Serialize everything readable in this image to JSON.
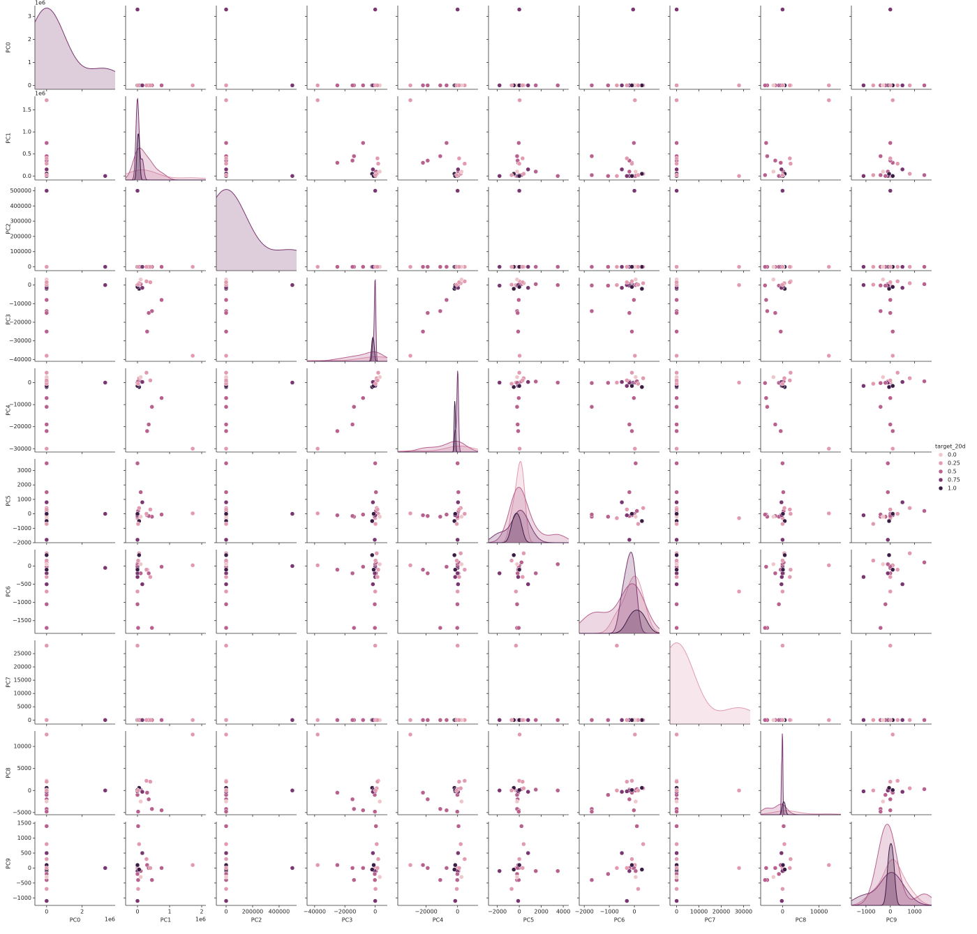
{
  "chart_data": {
    "type": "pairplot",
    "hue_title": "target_20d",
    "hue_levels": [
      {
        "value": 0,
        "label": "0.0"
      },
      0.25,
      0.5,
      0.75,
      {
        "value": 1,
        "label": "1.0"
      }
    ],
    "hue_colors": [
      "#efc6c9",
      "#e19aaf",
      "#b8608e",
      "#7a3670",
      "#3a1c45"
    ],
    "variables": [
      {
        "name": "PC0",
        "offset": "1e6",
        "xlim": [
          -660000,
          3860000
        ],
        "ylim": [
          -170000,
          3470000
        ],
        "xticks": [
          0,
          {
            "value": 2000000,
            "label": "2"
          }
        ],
        "yticks": [
          0,
          {
            "value": 1000000,
            "label": "1"
          },
          {
            "value": 2000000,
            "label": "2"
          },
          {
            "value": 3000000,
            "label": "3"
          }
        ]
      },
      {
        "name": "PC1",
        "offset": "1e6",
        "xlim": [
          -370000,
          2130000
        ],
        "ylim": [
          -90000,
          1810000
        ],
        "xticks": [
          0,
          {
            "value": 1000000,
            "label": "1"
          },
          {
            "value": 2000000,
            "label": "2"
          }
        ],
        "yticks": [
          {
            "value": 0,
            "label": "0.0"
          },
          {
            "value": 500000,
            "label": "0.5"
          },
          {
            "value": 1000000,
            "label": "1.0"
          },
          {
            "value": 1500000,
            "label": "1.5"
          }
        ]
      },
      {
        "name": "PC2",
        "xlim": [
          -74000,
          532000
        ],
        "ylim": [
          -25000,
          525000
        ],
        "xticks": [
          0,
          200000,
          400000
        ],
        "yticks": [
          0,
          100000,
          200000,
          300000,
          400000,
          500000
        ]
      },
      {
        "name": "PC3",
        "xlim": [
          -45000,
          8000
        ],
        "ylim": [
          -41000,
          4000
        ],
        "xticks": [
          {
            "value": -40000,
            "label": "−40000"
          },
          {
            "value": -20000,
            "label": "−20000"
          },
          0
        ],
        "yticks": [
          {
            "value": -40000,
            "label": "−40000"
          },
          {
            "value": -30000,
            "label": "−30000"
          },
          {
            "value": -20000,
            "label": "−20000"
          },
          {
            "value": -10000,
            "label": "−10000"
          },
          0
        ]
      },
      {
        "name": "PC4",
        "xlim": [
          -38000,
          13000
        ],
        "ylim": [
          -31500,
          6500
        ],
        "xticks": [
          {
            "value": -20000,
            "label": "−20000"
          },
          0
        ],
        "yticks": [
          {
            "value": -30000,
            "label": "−30000"
          },
          {
            "value": -20000,
            "label": "−20000"
          },
          {
            "value": -10000,
            "label": "−10000"
          },
          0
        ]
      },
      {
        "name": "PC5",
        "xlim": [
          -2800,
          4500
        ],
        "ylim": [
          -2000,
          3800
        ],
        "xticks": [
          {
            "value": -2000,
            "label": "−2000"
          },
          0,
          2000,
          4000
        ],
        "yticks": [
          {
            "value": -2000,
            "label": "−2000"
          },
          {
            "value": -1000,
            "label": "−1000"
          },
          0,
          1000,
          2000,
          3000
        ]
      },
      {
        "name": "PC6",
        "xlim": [
          -2200,
          1000
        ],
        "ylim": [
          -1850,
          450
        ],
        "xticks": [
          {
            "value": -2000,
            "label": "−2000"
          },
          {
            "value": -1000,
            "label": "−1000"
          },
          0
        ],
        "yticks": [
          {
            "value": -1500,
            "label": "−1500"
          },
          {
            "value": -1000,
            "label": "−1000"
          },
          {
            "value": -500,
            "label": "−500"
          },
          0
        ]
      },
      {
        "name": "PC7",
        "xlim": [
          -3000,
          33000
        ],
        "ylim": [
          -1500,
          30000
        ],
        "xticks": [
          0,
          10000,
          20000,
          30000
        ],
        "yticks": [
          0,
          5000,
          10000,
          15000,
          20000,
          25000
        ]
      },
      {
        "name": "PC8",
        "xlim": [
          -6000,
          16000
        ],
        "ylim": [
          -5500,
          13500
        ],
        "xticks": [
          0,
          10000
        ],
        "yticks": [
          {
            "value": -5000,
            "label": "−5000"
          },
          0,
          5000,
          10000
        ]
      },
      {
        "name": "PC9",
        "xlim": [
          -1600,
          1700
        ],
        "ylim": [
          -1250,
          1550
        ],
        "xticks": [
          {
            "value": -1000,
            "label": "−1000"
          },
          0,
          1000
        ],
        "yticks": [
          {
            "value": -1000,
            "label": "−1000"
          },
          {
            "value": -500,
            "label": "−500"
          },
          0,
          500,
          1000,
          1500
        ]
      }
    ],
    "points": [
      {
        "hue": 0.75,
        "values": [
          3300000,
          0,
          0,
          0,
          0,
          0,
          -50,
          0,
          0,
          0
        ]
      },
      {
        "hue": 0.25,
        "values": [
          0,
          1720000,
          0,
          -38000,
          -30000,
          30,
          20,
          0,
          12700,
          100
        ]
      },
      {
        "hue": 0.75,
        "values": [
          0,
          0,
          500000,
          0,
          0,
          0,
          0,
          0,
          0,
          0
        ]
      },
      {
        "hue": 0.25,
        "values": [
          0,
          0,
          0,
          0,
          0,
          -300,
          -700,
          28000,
          0,
          0
        ]
      },
      {
        "hue": 0.5,
        "values": [
          0,
          750000,
          0,
          -8000,
          -7000,
          -50,
          -20,
          0,
          -4500,
          0
        ]
      },
      {
        "hue": 0.5,
        "values": [
          0,
          300000,
          0,
          -25000,
          -22000,
          -100,
          -100,
          0,
          -500,
          100
        ]
      },
      {
        "hue": 0.5,
        "values": [
          0,
          450000,
          0,
          -14000,
          -11000,
          -200,
          -1700,
          0,
          -4200,
          -400
        ]
      },
      {
        "hue": 0.5,
        "values": [
          0,
          350000,
          0,
          -15000,
          -19000,
          -150,
          -200,
          0,
          -2000,
          0
        ]
      },
      {
        "hue": 0.25,
        "values": [
          0,
          280000,
          0,
          2000,
          4500,
          0,
          -100,
          0,
          2200,
          300
        ]
      },
      {
        "hue": 0.5,
        "values": [
          0,
          0,
          0,
          0,
          0,
          3500,
          50,
          0,
          0,
          -100
        ]
      },
      {
        "hue": 0.5,
        "values": [
          0,
          100000,
          0,
          500,
          500,
          1500,
          -200,
          0,
          200,
          -100
        ]
      },
      {
        "hue": 0.75,
        "values": [
          0,
          0,
          0,
          -300,
          0,
          -1800,
          -200,
          0,
          0,
          -100
        ]
      },
      {
        "hue": 0.5,
        "values": [
          0,
          20000,
          0,
          -200,
          -200,
          -50,
          -1700,
          0,
          -4800,
          -400
        ]
      },
      {
        "hue": 0.5,
        "values": [
          0,
          0,
          0,
          -300,
          -100,
          -200,
          -1050,
          0,
          -1000,
          -200
        ]
      },
      {
        "hue": 0.5,
        "values": [
          0,
          20000,
          0,
          500,
          600,
          200,
          100,
          0,
          300,
          1400
        ]
      },
      {
        "hue": 0.75,
        "values": [
          0,
          0,
          0,
          0,
          -1500,
          -100,
          -300,
          0,
          -200,
          -1100
        ]
      },
      {
        "hue": 0.25,
        "values": [
          0,
          50000,
          0,
          1000,
          2000,
          400,
          350,
          0,
          500,
          800
        ]
      },
      {
        "hue": 0,
        "values": [
          0,
          100000,
          0,
          3000,
          2500,
          -200,
          50,
          0,
          -2500,
          -300
        ]
      },
      {
        "hue": 1,
        "values": [
          0,
          50000,
          0,
          -2000,
          -2000,
          -500,
          300,
          0,
          600,
          -50
        ]
      },
      {
        "hue": 1,
        "values": [
          0,
          0,
          0,
          -1000,
          -1500,
          0,
          -100,
          0,
          100,
          100
        ]
      },
      {
        "hue": 0.75,
        "values": [
          0,
          150000,
          0,
          -1500,
          300,
          800,
          -500,
          0,
          -300,
          500
        ]
      },
      {
        "hue": 0.25,
        "values": [
          0,
          20000,
          0,
          200,
          -500,
          -700,
          150,
          0,
          0,
          -700
        ]
      },
      {
        "hue": 0.25,
        "values": [
          0,
          400000,
          0,
          1500,
          1000,
          300,
          -300,
          0,
          2000,
          0
        ]
      }
    ]
  }
}
